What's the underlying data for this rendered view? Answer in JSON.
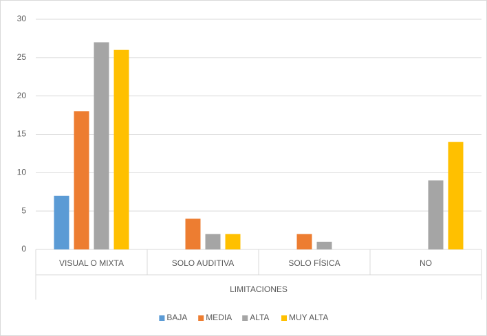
{
  "chart_data": {
    "type": "bar",
    "x_label": "LIMITACIONES",
    "categories": [
      "VISUAL O MIXTA",
      "SOLO AUDITIVA",
      "SOLO FÍSICA",
      "NO"
    ],
    "series": [
      {
        "name": "BAJA",
        "color": "#5b9bd5",
        "values": [
          7,
          0,
          0,
          0
        ]
      },
      {
        "name": "MEDIA",
        "color": "#ed7d31",
        "values": [
          18,
          4,
          2,
          0
        ]
      },
      {
        "name": "ALTA",
        "color": "#a5a5a5",
        "values": [
          27,
          2,
          1,
          9
        ]
      },
      {
        "name": "MUY ALTA",
        "color": "#ffc000",
        "values": [
          26,
          2,
          0,
          14
        ]
      }
    ],
    "ylim": [
      0,
      30
    ],
    "yticks": [
      0,
      5,
      10,
      15,
      20,
      25,
      30
    ],
    "grid": true,
    "legend": "bottom"
  }
}
